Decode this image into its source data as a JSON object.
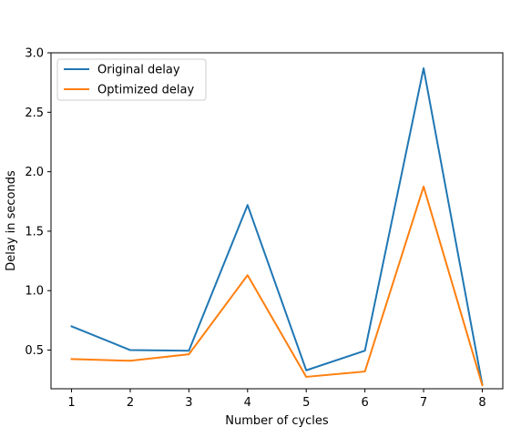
{
  "chart_data": {
    "type": "line",
    "x": [
      1,
      2,
      3,
      4,
      5,
      6,
      7,
      8
    ],
    "series": [
      {
        "name": "Original delay",
        "color": "#1f77b4",
        "values": [
          0.7,
          0.5,
          0.495,
          1.72,
          0.33,
          0.495,
          2.87,
          0.21
        ]
      },
      {
        "name": "Optimized delay",
        "color": "#ff7f0e",
        "values": [
          0.425,
          0.41,
          0.465,
          1.13,
          0.275,
          0.32,
          1.875,
          0.205
        ]
      }
    ],
    "xlabel": "Number of cycles",
    "ylabel": "Delay in seconds",
    "xlim": [
      0.65,
      8.35
    ],
    "ylim": [
      0.175,
      3.0
    ],
    "xticks": [
      1,
      2,
      3,
      4,
      5,
      6,
      7,
      8
    ],
    "xtick_labels": [
      "1",
      "2",
      "3",
      "4",
      "5",
      "6",
      "7",
      "8"
    ],
    "yticks": [
      0.5,
      1.0,
      1.5,
      2.0,
      2.5,
      3.0
    ],
    "ytick_labels": [
      "0.5",
      "1.0",
      "1.5",
      "2.0",
      "2.5",
      "3.0"
    ],
    "grid": false,
    "legend_position": "upper-left"
  }
}
